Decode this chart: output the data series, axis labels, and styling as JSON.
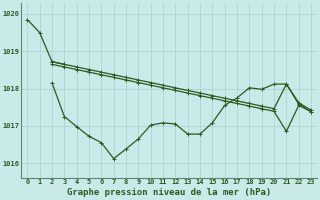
{
  "xlabel": "Graphe pression niveau de la mer (hPa)",
  "bg_color": "#caeaea",
  "plot_bg_color": "#caeaea",
  "line_color": "#2d5a1e",
  "grid_color": "#a8d0cc",
  "spine_color": "#5a8a6a",
  "xlim_min": -0.5,
  "xlim_max": 23.5,
  "ylim_min": 1015.6,
  "ylim_max": 1020.3,
  "yticks": [
    1016,
    1017,
    1018,
    1019,
    1020
  ],
  "xticks": [
    0,
    1,
    2,
    3,
    4,
    5,
    6,
    7,
    8,
    9,
    10,
    11,
    12,
    13,
    14,
    15,
    16,
    17,
    18,
    19,
    20,
    21,
    22,
    23
  ],
  "line1_x": [
    0,
    1,
    2,
    3
  ],
  "line1_y": [
    1019.85,
    1019.5,
    1018.72,
    1018.65
  ],
  "line2_x": [
    2,
    3,
    4,
    5,
    6,
    7,
    8,
    9,
    10,
    11,
    12,
    13,
    14,
    15,
    16,
    17,
    18,
    19,
    20,
    21,
    22,
    23
  ],
  "line2_y": [
    1018.72,
    1018.65,
    1018.58,
    1018.51,
    1018.44,
    1018.37,
    1018.3,
    1018.23,
    1018.16,
    1018.09,
    1018.02,
    1017.95,
    1017.88,
    1017.81,
    1017.74,
    1017.67,
    1017.6,
    1017.53,
    1017.46,
    1018.12,
    1017.62,
    1017.42
  ],
  "line3_x": [
    2,
    3,
    4,
    5,
    6,
    7,
    8,
    9,
    10,
    11,
    12,
    13,
    14,
    15,
    16,
    17,
    18,
    19,
    20,
    21,
    22,
    23
  ],
  "line3_y": [
    1018.65,
    1018.58,
    1018.51,
    1018.44,
    1018.37,
    1018.3,
    1018.23,
    1018.16,
    1018.09,
    1018.02,
    1017.95,
    1017.88,
    1017.81,
    1017.74,
    1017.67,
    1017.6,
    1017.53,
    1017.46,
    1017.39,
    1016.85,
    1017.55,
    1017.38
  ],
  "line4_x": [
    2,
    3,
    4,
    5,
    6,
    7,
    8,
    9,
    10,
    11,
    12,
    13,
    14,
    15,
    16,
    17,
    18,
    19,
    20,
    21,
    22,
    23
  ],
  "line4_y": [
    1018.15,
    1017.25,
    1016.98,
    1016.72,
    1016.55,
    1016.12,
    1016.38,
    1016.65,
    1017.02,
    1017.08,
    1017.05,
    1016.78,
    1016.78,
    1017.08,
    1017.55,
    1017.75,
    1018.02,
    1017.98,
    1018.12,
    1018.12,
    1017.58,
    1017.38
  ],
  "xlabel_fontsize": 6.5,
  "tick_fontsize": 5.0
}
